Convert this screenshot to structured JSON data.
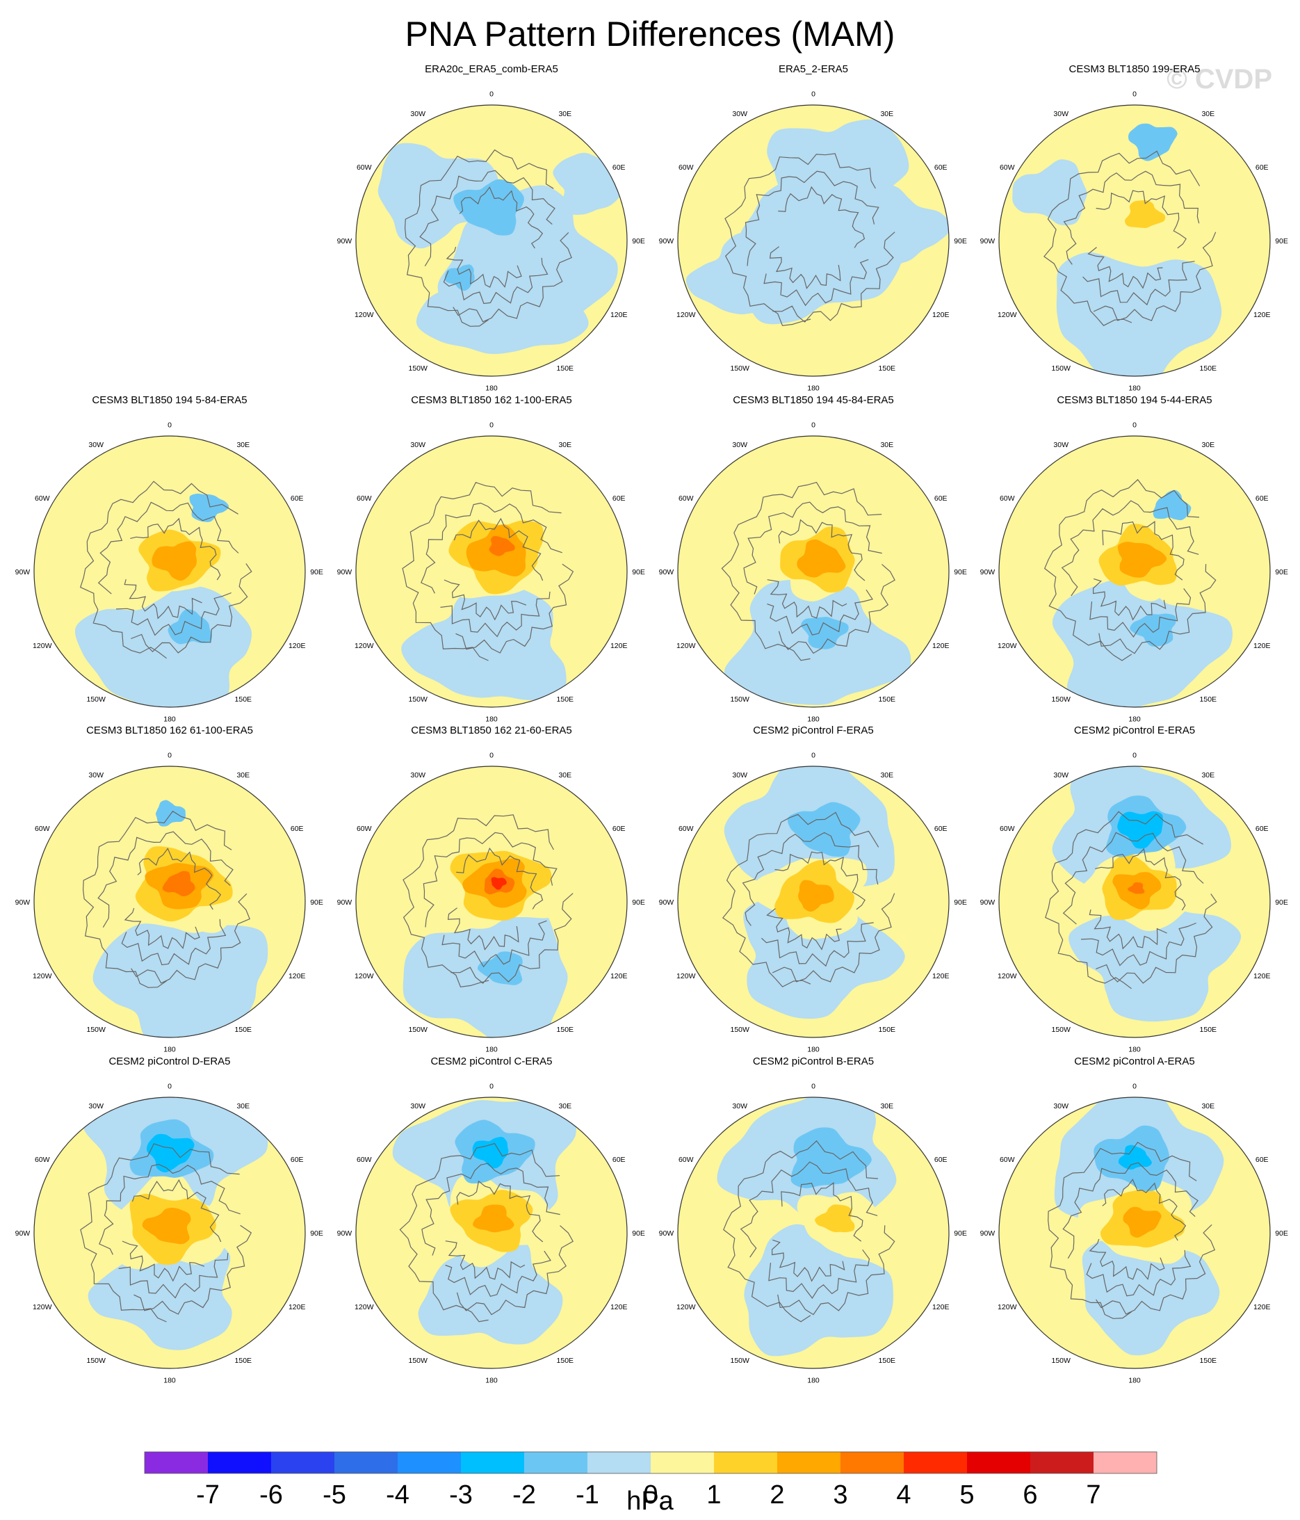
{
  "title": "PNA Pattern Differences (MAM)",
  "watermark": "© CVDP",
  "unit": "hPa",
  "lon_labels": [
    "180",
    "150E",
    "120E",
    "90E",
    "60E",
    "30E",
    "0",
    "30W",
    "60W",
    "90W",
    "120W",
    "150W"
  ],
  "colorbar": {
    "colors": [
      "#8a2be2",
      "#1010ff",
      "#2a42f0",
      "#2e6ee8",
      "#1e90ff",
      "#00bfff",
      "#6cc6f4",
      "#b4dcf2",
      "#fdf69a",
      "#ffd22a",
      "#ffa800",
      "#ff7800",
      "#ff2a00",
      "#e40000",
      "#cc1c1c",
      "#ffb0b0"
    ],
    "ticks": [
      "-7",
      "-6",
      "-5",
      "-4",
      "-3",
      "-2",
      "-1",
      "0",
      "1",
      "2",
      "3",
      "4",
      "5",
      "6",
      "7"
    ]
  },
  "panels": [
    {
      "title": "ERA20c_ERA5_comb-ERA5",
      "row": 0,
      "col": 1,
      "blobs": [
        {
          "lon": 60,
          "r": 0.3,
          "s": 0.55,
          "level": -1
        },
        {
          "lon": -130,
          "r": 0.55,
          "s": 0.4,
          "level": -1
        },
        {
          "lon": 180,
          "r": 0.25,
          "s": 0.22,
          "level": -2
        },
        {
          "lon": 10,
          "r": 0.45,
          "s": 0.5,
          "level": -1
        },
        {
          "lon": 120,
          "r": 0.85,
          "s": 0.25,
          "level": -1
        },
        {
          "lon": -40,
          "r": 0.35,
          "s": 0.1,
          "level": -2
        }
      ]
    },
    {
      "title": "ERA5_2-ERA5",
      "row": 0,
      "col": 2,
      "blobs": [
        {
          "lon": 0,
          "r": 0.1,
          "s": 0.55,
          "level": -1
        },
        {
          "lon": 160,
          "r": 0.55,
          "s": 0.45,
          "level": -1
        },
        {
          "lon": -60,
          "r": 0.55,
          "s": 0.35,
          "level": -1
        },
        {
          "lon": 100,
          "r": 0.55,
          "s": 0.35,
          "level": -1
        }
      ]
    },
    {
      "title": "CESM3 BLT1850 199-ERA5",
      "row": 0,
      "col": 3,
      "blobs": [
        {
          "lon": 0,
          "r": 0.55,
          "s": 0.55,
          "level": -1
        },
        {
          "lon": 170,
          "r": 0.2,
          "s": 0.3,
          "level": 1
        },
        {
          "lon": 160,
          "r": 0.2,
          "s": 0.12,
          "level": 2
        },
        {
          "lon": 170,
          "r": 0.75,
          "s": 0.15,
          "level": -2
        },
        {
          "lon": -120,
          "r": 0.7,
          "s": 0.25,
          "level": -1
        }
      ]
    },
    {
      "title": "CESM3 BLT1850 194 5-84-ERA5",
      "row": 1,
      "col": 0,
      "blobs": [
        {
          "lon": 0,
          "r": 0.6,
          "s": 0.55,
          "level": -1
        },
        {
          "lon": 150,
          "r": 0.15,
          "s": 0.35,
          "level": 1
        },
        {
          "lon": 150,
          "r": 0.1,
          "s": 0.25,
          "level": 2
        },
        {
          "lon": 150,
          "r": 0.1,
          "s": 0.15,
          "level": 3
        },
        {
          "lon": 20,
          "r": 0.45,
          "s": 0.14,
          "level": -2
        },
        {
          "lon": 150,
          "r": 0.55,
          "s": 0.12,
          "level": -2
        }
      ]
    },
    {
      "title": "CESM3 BLT1850 162 1-100-ERA5",
      "row": 1,
      "col": 1,
      "blobs": [
        {
          "lon": 0,
          "r": 0.55,
          "s": 0.5,
          "level": -1
        },
        {
          "lon": 160,
          "r": 0.15,
          "s": 0.4,
          "level": 1
        },
        {
          "lon": 160,
          "r": 0.15,
          "s": 0.3,
          "level": 2
        },
        {
          "lon": 160,
          "r": 0.15,
          "s": 0.2,
          "level": 3
        },
        {
          "lon": 160,
          "r": 0.2,
          "s": 0.08,
          "level": 4
        }
      ]
    },
    {
      "title": "CESM3 BLT1850 194 45-84-ERA5",
      "row": 1,
      "col": 2,
      "blobs": [
        {
          "lon": 0,
          "r": 0.55,
          "s": 0.55,
          "level": -1
        },
        {
          "lon": 150,
          "r": 0.15,
          "s": 0.35,
          "level": 1
        },
        {
          "lon": 150,
          "r": 0.1,
          "s": 0.25,
          "level": 2
        },
        {
          "lon": 150,
          "r": 0.1,
          "s": 0.15,
          "level": 3
        },
        {
          "lon": 10,
          "r": 0.45,
          "s": 0.14,
          "level": -2
        }
      ]
    },
    {
      "title": "CESM3 BLT1850 194 5-44-ERA5",
      "row": 1,
      "col": 3,
      "blobs": [
        {
          "lon": 0,
          "r": 0.55,
          "s": 0.55,
          "level": -1
        },
        {
          "lon": 160,
          "r": 0.15,
          "s": 0.35,
          "level": 1
        },
        {
          "lon": 160,
          "r": 0.1,
          "s": 0.25,
          "level": 2
        },
        {
          "lon": 160,
          "r": 0.1,
          "s": 0.15,
          "level": 3
        },
        {
          "lon": 20,
          "r": 0.45,
          "s": 0.14,
          "level": -2
        },
        {
          "lon": 150,
          "r": 0.55,
          "s": 0.12,
          "level": -2
        }
      ]
    },
    {
      "title": "CESM3 BLT1850 162 61-100-ERA5",
      "row": 2,
      "col": 0,
      "blobs": [
        {
          "lon": 10,
          "r": 0.6,
          "s": 0.55,
          "level": -1
        },
        {
          "lon": 150,
          "r": 0.15,
          "s": 0.4,
          "level": 1
        },
        {
          "lon": 150,
          "r": 0.15,
          "s": 0.3,
          "level": 2
        },
        {
          "lon": 150,
          "r": 0.15,
          "s": 0.2,
          "level": 3
        },
        {
          "lon": 150,
          "r": 0.15,
          "s": 0.1,
          "level": 4
        },
        {
          "lon": 180,
          "r": 0.65,
          "s": 0.1,
          "level": -2
        }
      ]
    },
    {
      "title": "CESM3 BLT1850 162 21-60-ERA5",
      "row": 2,
      "col": 1,
      "blobs": [
        {
          "lon": 0,
          "r": 0.55,
          "s": 0.55,
          "level": -1
        },
        {
          "lon": 160,
          "r": 0.15,
          "s": 0.4,
          "level": 1
        },
        {
          "lon": 160,
          "r": 0.15,
          "s": 0.3,
          "level": 2
        },
        {
          "lon": 160,
          "r": 0.15,
          "s": 0.2,
          "level": 3
        },
        {
          "lon": 160,
          "r": 0.15,
          "s": 0.1,
          "level": 4
        },
        {
          "lon": 160,
          "r": 0.15,
          "s": 0.05,
          "level": 5
        },
        {
          "lon": 10,
          "r": 0.5,
          "s": 0.14,
          "level": -2
        }
      ]
    },
    {
      "title": "CESM2 piControl F-ERA5",
      "row": 2,
      "col": 2,
      "blobs": [
        {
          "lon": 180,
          "r": 0.55,
          "s": 0.55,
          "level": -1
        },
        {
          "lon": 0,
          "r": 0.4,
          "s": 0.5,
          "level": -1
        },
        {
          "lon": 170,
          "r": 0.05,
          "s": 0.35,
          "level": 1
        },
        {
          "lon": 170,
          "r": 0.05,
          "s": 0.25,
          "level": 2
        },
        {
          "lon": 170,
          "r": 0.05,
          "s": 0.12,
          "level": 3
        },
        {
          "lon": 170,
          "r": 0.55,
          "s": 0.22,
          "level": -2
        }
      ]
    },
    {
      "title": "CESM2 piControl E-ERA5",
      "row": 2,
      "col": 3,
      "blobs": [
        {
          "lon": 180,
          "r": 0.55,
          "s": 0.55,
          "level": -1
        },
        {
          "lon": 20,
          "r": 0.45,
          "s": 0.5,
          "level": -1
        },
        {
          "lon": 170,
          "r": 0.1,
          "s": 0.35,
          "level": 1
        },
        {
          "lon": 170,
          "r": 0.1,
          "s": 0.25,
          "level": 2
        },
        {
          "lon": 170,
          "r": 0.1,
          "s": 0.15,
          "level": 3
        },
        {
          "lon": 170,
          "r": 0.1,
          "s": 0.05,
          "level": 4
        },
        {
          "lon": 175,
          "r": 0.55,
          "s": 0.25,
          "level": -2
        },
        {
          "lon": 175,
          "r": 0.55,
          "s": 0.15,
          "level": -3
        }
      ]
    },
    {
      "title": "CESM2 piControl D-ERA5",
      "row": 3,
      "col": 0,
      "blobs": [
        {
          "lon": 180,
          "r": 0.6,
          "s": 0.55,
          "level": -1
        },
        {
          "lon": 0,
          "r": 0.45,
          "s": 0.45,
          "level": -1
        },
        {
          "lon": 180,
          "r": 0.05,
          "s": 0.38,
          "level": 1
        },
        {
          "lon": 180,
          "r": 0.05,
          "s": 0.28,
          "level": 2
        },
        {
          "lon": 180,
          "r": 0.05,
          "s": 0.15,
          "level": 3
        },
        {
          "lon": 180,
          "r": 0.6,
          "s": 0.25,
          "level": -2
        },
        {
          "lon": 180,
          "r": 0.6,
          "s": 0.15,
          "level": -3
        }
      ]
    },
    {
      "title": "CESM2 piControl C-ERA5",
      "row": 3,
      "col": 1,
      "blobs": [
        {
          "lon": 180,
          "r": 0.55,
          "s": 0.55,
          "level": -1
        },
        {
          "lon": 0,
          "r": 0.45,
          "s": 0.45,
          "level": -1
        },
        {
          "lon": 170,
          "r": 0.1,
          "s": 0.35,
          "level": 1
        },
        {
          "lon": 170,
          "r": 0.1,
          "s": 0.25,
          "level": 2
        },
        {
          "lon": 170,
          "r": 0.1,
          "s": 0.12,
          "level": 3
        },
        {
          "lon": 180,
          "r": 0.6,
          "s": 0.25,
          "level": -2
        },
        {
          "lon": 180,
          "r": 0.6,
          "s": 0.12,
          "level": -3
        }
      ]
    },
    {
      "title": "CESM2 piControl B-ERA5",
      "row": 3,
      "col": 2,
      "blobs": [
        {
          "lon": 180,
          "r": 0.55,
          "s": 0.55,
          "level": -1
        },
        {
          "lon": 0,
          "r": 0.45,
          "s": 0.5,
          "level": -1
        },
        {
          "lon": 120,
          "r": 0.2,
          "s": 0.25,
          "level": 1
        },
        {
          "lon": 120,
          "r": 0.2,
          "s": 0.12,
          "level": 2
        },
        {
          "lon": 170,
          "r": 0.55,
          "s": 0.25,
          "level": -2
        }
      ]
    },
    {
      "title": "CESM2 piControl A-ERA5",
      "row": 3,
      "col": 3,
      "blobs": [
        {
          "lon": 180,
          "r": 0.55,
          "s": 0.55,
          "level": -1
        },
        {
          "lon": 10,
          "r": 0.45,
          "s": 0.45,
          "level": -1
        },
        {
          "lon": 150,
          "r": 0.1,
          "s": 0.35,
          "level": 1
        },
        {
          "lon": 150,
          "r": 0.1,
          "s": 0.25,
          "level": 2
        },
        {
          "lon": 150,
          "r": 0.1,
          "s": 0.12,
          "level": 3
        },
        {
          "lon": 180,
          "r": 0.55,
          "s": 0.25,
          "level": -2
        },
        {
          "lon": 180,
          "r": 0.55,
          "s": 0.1,
          "level": -3
        }
      ]
    }
  ]
}
